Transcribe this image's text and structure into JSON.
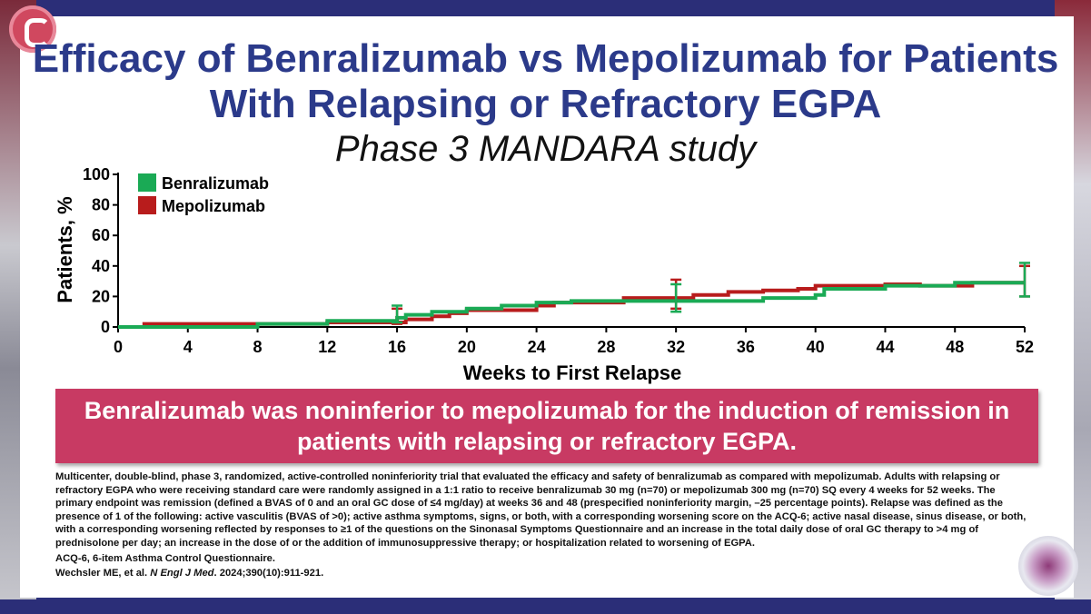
{
  "title": "Efficacy of Benralizumab vs Mepolizumab for Patients With Relapsing or Refractory EGPA",
  "subtitle": "Phase 3 MANDARA study",
  "banner": "Benralizumab was noninferior to mepolizumab for the induction of remission in patients with relapsing or refractory EGPA.",
  "footnote": {
    "description": "Multicenter, double-blind, phase 3, randomized, active-controlled noninferiority trial that evaluated the efficacy and safety of benralizumab as compared with mepolizumab. Adults with relapsing or refractory EGPA who were receiving standard care were randomly assigned in a 1:1 ratio to receive benralizumab 30 mg (n=70) or mepolizumab 300 mg (n=70) SQ every 4 weeks for 52 weeks. The primary endpoint was remission (defined a BVAS of 0 and an oral GC dose of ≤4 mg/day) at weeks 36 and 48 (prespecified noninferiority margin, –25 percentage points). Relapse was defined as the presence of 1 of the following: active vasculitis (BVAS of >0); active asthma symptoms, signs, or both, with a corresponding worsening score on the ACQ-6; active nasal disease, sinus disease, or both, with a corresponding worsening reflected by responses to ≥1 of the questions on the Sinonasal Symptoms Questionnaire and an increase in the total daily dose of oral GC therapy to >4 mg of prednisolone per day; an increase in the dose of or the addition of immunosuppressive therapy; or hospitalization related to worsening of EGPA.",
    "abbrev": "ACQ-6, 6-item Asthma Control Questionnaire.",
    "citation_authors": "Wechsler ME, et al.",
    "citation_journal": "N Engl J Med",
    "citation_rest": ". 2024;390(10):911-921."
  },
  "chart_data": {
    "type": "line",
    "step": true,
    "xlabel": "Weeks to First Relapse",
    "ylabel": "Patients, %",
    "xlim": [
      0,
      52
    ],
    "ylim": [
      0,
      100
    ],
    "xticks": [
      0,
      4,
      8,
      12,
      16,
      20,
      24,
      28,
      32,
      36,
      40,
      44,
      48,
      52
    ],
    "yticks": [
      0,
      20,
      40,
      60,
      80,
      100
    ],
    "legend_position": "top-left",
    "series": [
      {
        "name": "Benralizumab",
        "color": "#1aaa55",
        "points": [
          [
            0,
            0
          ],
          [
            8,
            0
          ],
          [
            8,
            2
          ],
          [
            12,
            2
          ],
          [
            12,
            4
          ],
          [
            16,
            4
          ],
          [
            16,
            6
          ],
          [
            16.5,
            6
          ],
          [
            16.5,
            8
          ],
          [
            18,
            8
          ],
          [
            18,
            10
          ],
          [
            20,
            10
          ],
          [
            20,
            12
          ],
          [
            22,
            12
          ],
          [
            22,
            14
          ],
          [
            24,
            14
          ],
          [
            24,
            16
          ],
          [
            26,
            16
          ],
          [
            26,
            17
          ],
          [
            37,
            17
          ],
          [
            37,
            19
          ],
          [
            40,
            19
          ],
          [
            40,
            21
          ],
          [
            40.5,
            21
          ],
          [
            40.5,
            25
          ],
          [
            44,
            25
          ],
          [
            44,
            27
          ],
          [
            48,
            27
          ],
          [
            48,
            29
          ],
          [
            52,
            29
          ]
        ],
        "error_bars": [
          {
            "x": 16,
            "low": 3,
            "high": 14
          },
          {
            "x": 32,
            "low": 10,
            "high": 28
          },
          {
            "x": 52,
            "low": 20,
            "high": 42
          }
        ]
      },
      {
        "name": "Mepolizumab",
        "color": "#b81c1c",
        "points": [
          [
            1.5,
            0
          ],
          [
            1.5,
            2
          ],
          [
            12,
            2
          ],
          [
            12,
            3
          ],
          [
            16.5,
            3
          ],
          [
            16.5,
            5
          ],
          [
            18,
            5
          ],
          [
            18,
            7
          ],
          [
            19,
            7
          ],
          [
            19,
            9
          ],
          [
            20,
            9
          ],
          [
            20,
            11
          ],
          [
            24,
            11
          ],
          [
            24,
            14
          ],
          [
            25,
            14
          ],
          [
            25,
            16
          ],
          [
            29,
            16
          ],
          [
            29,
            19
          ],
          [
            33,
            19
          ],
          [
            33,
            21
          ],
          [
            35,
            21
          ],
          [
            35,
            23
          ],
          [
            37,
            23
          ],
          [
            37,
            24
          ],
          [
            39,
            24
          ],
          [
            39,
            25
          ],
          [
            40,
            25
          ],
          [
            40,
            27
          ],
          [
            44,
            27
          ],
          [
            44,
            28
          ],
          [
            46,
            28
          ],
          [
            46,
            27
          ],
          [
            49,
            27
          ],
          [
            49,
            29
          ],
          [
            52,
            29
          ]
        ],
        "error_bars": [
          {
            "x": 16,
            "low": 2,
            "high": 12
          },
          {
            "x": 32,
            "low": 12,
            "high": 31
          },
          {
            "x": 52,
            "low": 20,
            "high": 40
          }
        ]
      }
    ]
  }
}
